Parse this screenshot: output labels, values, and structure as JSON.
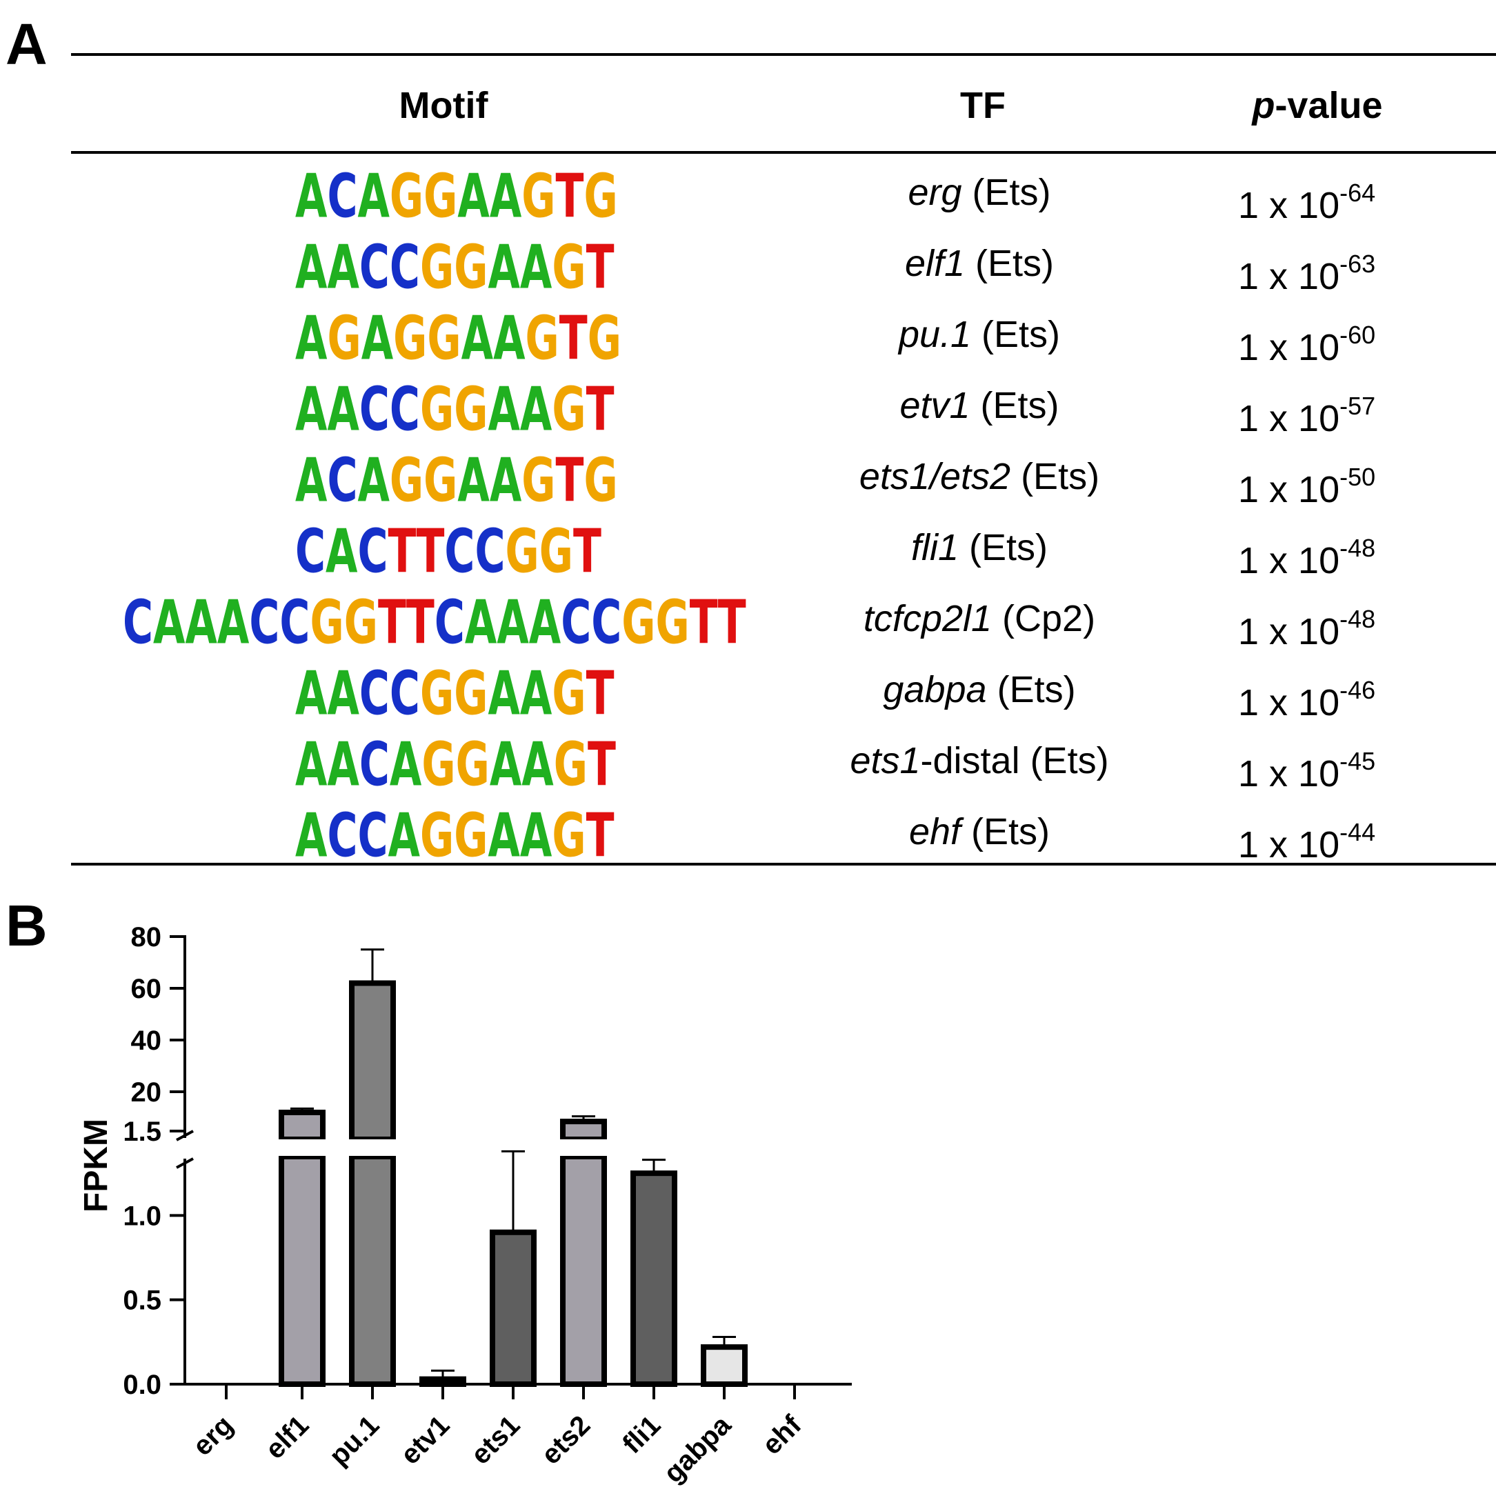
{
  "panel_a": {
    "label": "A",
    "headers": {
      "motif": "Motif",
      "tf": "TF",
      "p_italic": "p",
      "p_rest": "-value"
    },
    "rows": [
      {
        "gene": "erg",
        "family": "(Ets)",
        "base": "1 x 10",
        "exponent": "-64",
        "motif_logo": [
          [
            "A",
            "#20b020"
          ],
          [
            "C",
            "#1530c8"
          ],
          [
            "A",
            "#20b020"
          ],
          [
            "G",
            "#f0a400"
          ],
          [
            "G",
            "#f0a400"
          ],
          [
            "A",
            "#20b020"
          ],
          [
            "A",
            "#20b020"
          ],
          [
            "G",
            "#f0a400"
          ],
          [
            "T",
            "#e01010"
          ],
          [
            "G",
            "#f0a400"
          ]
        ]
      },
      {
        "gene": "elf1",
        "family": "(Ets)",
        "base": "1 x 10",
        "exponent": "-63",
        "motif_logo": [
          [
            "A",
            "#20b020"
          ],
          [
            "A",
            "#20b020"
          ],
          [
            "C",
            "#1530c8"
          ],
          [
            "C",
            "#1530c8"
          ],
          [
            "G",
            "#f0a400"
          ],
          [
            "G",
            "#f0a400"
          ],
          [
            "A",
            "#20b020"
          ],
          [
            "A",
            "#20b020"
          ],
          [
            "G",
            "#f0a400"
          ],
          [
            "T",
            "#e01010"
          ]
        ]
      },
      {
        "gene": "pu.1",
        "family": "(Ets)",
        "base": "1 x 10",
        "exponent": "-60",
        "motif_logo": [
          [
            "A",
            "#20b020"
          ],
          [
            "G",
            "#f0a400"
          ],
          [
            "A",
            "#20b020"
          ],
          [
            "G",
            "#f0a400"
          ],
          [
            "G",
            "#f0a400"
          ],
          [
            "A",
            "#20b020"
          ],
          [
            "A",
            "#20b020"
          ],
          [
            "G",
            "#f0a400"
          ],
          [
            "T",
            "#e01010"
          ],
          [
            "G",
            "#f0a400"
          ]
        ]
      },
      {
        "gene": "etv1",
        "family": "(Ets)",
        "base": "1 x 10",
        "exponent": "-57",
        "motif_logo": [
          [
            "A",
            "#20b020"
          ],
          [
            "A",
            "#20b020"
          ],
          [
            "C",
            "#1530c8"
          ],
          [
            "C",
            "#1530c8"
          ],
          [
            "G",
            "#f0a400"
          ],
          [
            "G",
            "#f0a400"
          ],
          [
            "A",
            "#20b020"
          ],
          [
            "A",
            "#20b020"
          ],
          [
            "G",
            "#f0a400"
          ],
          [
            "T",
            "#e01010"
          ]
        ]
      },
      {
        "gene": "ets1/ets2",
        "family": "(Ets)",
        "base": "1 x 10",
        "exponent": "-50",
        "motif_logo": [
          [
            "A",
            "#20b020"
          ],
          [
            "C",
            "#1530c8"
          ],
          [
            "A",
            "#20b020"
          ],
          [
            "G",
            "#f0a400"
          ],
          [
            "G",
            "#f0a400"
          ],
          [
            "A",
            "#20b020"
          ],
          [
            "A",
            "#20b020"
          ],
          [
            "G",
            "#f0a400"
          ],
          [
            "T",
            "#e01010"
          ],
          [
            "G",
            "#f0a400"
          ]
        ]
      },
      {
        "gene": "fli1",
        "family": "(Ets)",
        "base": "1 x 10",
        "exponent": "-48",
        "motif_logo": [
          [
            "C",
            "#1530c8"
          ],
          [
            "A",
            "#20b020"
          ],
          [
            "C",
            "#1530c8"
          ],
          [
            "T",
            "#e01010"
          ],
          [
            "T",
            "#e01010"
          ],
          [
            "C",
            "#1530c8"
          ],
          [
            "C",
            "#1530c8"
          ],
          [
            "G",
            "#f0a400"
          ],
          [
            "G",
            "#f0a400"
          ],
          [
            "T",
            "#e01010"
          ]
        ]
      },
      {
        "gene": "tcfcp2l1",
        "family": "(Cp2)",
        "base": "1 x 10",
        "exponent": "-48",
        "motif_logo": [
          [
            "C",
            "#1530c8"
          ],
          [
            "A",
            "#20b020"
          ],
          [
            "A",
            "#20b020"
          ],
          [
            "A",
            "#20b020"
          ],
          [
            "C",
            "#1530c8"
          ],
          [
            "C",
            "#1530c8"
          ],
          [
            "G",
            "#f0a400"
          ],
          [
            "G",
            "#f0a400"
          ],
          [
            "T",
            "#e01010"
          ],
          [
            "T",
            "#e01010"
          ],
          [
            "C",
            "#1530c8"
          ],
          [
            "A",
            "#20b020"
          ],
          [
            "A",
            "#20b020"
          ],
          [
            "A",
            "#20b020"
          ],
          [
            "C",
            "#1530c8"
          ],
          [
            "C",
            "#1530c8"
          ],
          [
            "G",
            "#f0a400"
          ],
          [
            "G",
            "#f0a400"
          ],
          [
            "T",
            "#e01010"
          ],
          [
            "T",
            "#e01010"
          ]
        ]
      },
      {
        "gene": "gabpa",
        "family": "(Ets)",
        "base": "1 x 10",
        "exponent": "-46",
        "motif_logo": [
          [
            "A",
            "#20b020"
          ],
          [
            "A",
            "#20b020"
          ],
          [
            "C",
            "#1530c8"
          ],
          [
            "C",
            "#1530c8"
          ],
          [
            "G",
            "#f0a400"
          ],
          [
            "G",
            "#f0a400"
          ],
          [
            "A",
            "#20b020"
          ],
          [
            "A",
            "#20b020"
          ],
          [
            "G",
            "#f0a400"
          ],
          [
            "T",
            "#e01010"
          ]
        ]
      },
      {
        "gene": "ets1",
        "family": "-distal (Ets)",
        "base": "1 x 10",
        "exponent": "-45",
        "motif_logo": [
          [
            "A",
            "#20b020"
          ],
          [
            "A",
            "#20b020"
          ],
          [
            "C",
            "#1530c8"
          ],
          [
            "A",
            "#20b020"
          ],
          [
            "G",
            "#f0a400"
          ],
          [
            "G",
            "#f0a400"
          ],
          [
            "A",
            "#20b020"
          ],
          [
            "A",
            "#20b020"
          ],
          [
            "G",
            "#f0a400"
          ],
          [
            "T",
            "#e01010"
          ]
        ]
      },
      {
        "gene": "ehf",
        "family": "(Ets)",
        "base": "1 x 10",
        "exponent": "-44",
        "motif_logo": [
          [
            "A",
            "#20b020"
          ],
          [
            "C",
            "#1530c8"
          ],
          [
            "C",
            "#1530c8"
          ],
          [
            "A",
            "#20b020"
          ],
          [
            "G",
            "#f0a400"
          ],
          [
            "G",
            "#f0a400"
          ],
          [
            "A",
            "#20b020"
          ],
          [
            "A",
            "#20b020"
          ],
          [
            "G",
            "#f0a400"
          ],
          [
            "T",
            "#e01010"
          ]
        ]
      }
    ]
  },
  "panel_b": {
    "label": "B"
  },
  "chart_data": {
    "type": "bar",
    "ylabel": "FPKM",
    "y_axis_broken": true,
    "lower_segment": {
      "ylim": [
        0,
        1.5
      ],
      "ticks": [
        "0.0",
        "0.5",
        "1.0",
        "1.5"
      ]
    },
    "upper_segment": {
      "ylim": [
        0,
        80
      ],
      "ticks": [
        "20",
        "40",
        "60",
        "80"
      ]
    },
    "categories": [
      "erg",
      "elf1",
      "pu.1",
      "etv1",
      "ets1",
      "ets2",
      "fli1",
      "gabpa",
      "ehf"
    ],
    "values": [
      0,
      12,
      62,
      0.03,
      0.9,
      8.5,
      1.25,
      0.22,
      0
    ],
    "error_upper": [
      0,
      13.5,
      75,
      0.08,
      1.38,
      10.5,
      1.33,
      0.28,
      0
    ],
    "bar_colors": [
      "#a3a0a8",
      "#a3a0a8",
      "#808080",
      "#808080",
      "#5f5f5f",
      "#a3a0a8",
      "#5f5f5f",
      "#e6e6e6",
      "#e6e6e6"
    ],
    "bar_edge_color": "#000000"
  }
}
